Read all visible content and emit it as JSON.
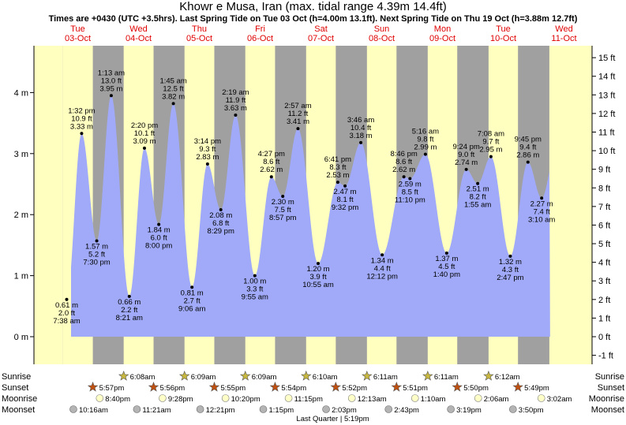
{
  "title": "Khowr e Musa, Iran (max. tidal range 4.39m 14.4ft)",
  "subtitle": "Times are +0430 (UTC +3.5hrs). Last Spring Tide on Tue 03 Oct (h=4.00m 13.1ft). Next Spring Tide on Thu 19 Oct (h=3.88m 12.7ft)",
  "colors": {
    "water": "#a0aaf8",
    "day": "#ffffc0",
    "night": "#a0a0a0",
    "date_text": "#e00000",
    "sunrise_star": "#c8b840",
    "sunset_star": "#c05010",
    "moonrise": "#ffffc8",
    "moonset": "#b4b4b4"
  },
  "chart_data": {
    "type": "area",
    "title": "Khowr e Musa, Iran (max. tidal range 4.39m 14.4ft)",
    "ylabel_left": "m",
    "ylabel_right": "ft",
    "ylim_m": [
      -0.33,
      4.78
    ],
    "y_ticks_m": [
      "0 m",
      "1 m",
      "2 m",
      "3 m",
      "4 m"
    ],
    "y_ticks_ft": [
      "-1 ft",
      "0 ft",
      "1 ft",
      "2 ft",
      "3 ft",
      "4 ft",
      "5 ft",
      "6 ft",
      "7 ft",
      "8 ft",
      "9 ft",
      "10 ft",
      "11 ft",
      "12 ft",
      "13 ft",
      "14 ft",
      "15 ft"
    ],
    "days": [
      {
        "name": "Tue",
        "date": "03-Oct"
      },
      {
        "name": "Wed",
        "date": "04-Oct"
      },
      {
        "name": "Thu",
        "date": "05-Oct"
      },
      {
        "name": "Fri",
        "date": "06-Oct"
      },
      {
        "name": "Sat",
        "date": "07-Oct"
      },
      {
        "name": "Sun",
        "date": "08-Oct"
      },
      {
        "name": "Mon",
        "date": "09-Oct"
      },
      {
        "name": "Tue",
        "date": "10-Oct"
      },
      {
        "name": "Wed",
        "date": "11-Oct"
      }
    ],
    "tides": [
      {
        "day": 0,
        "hour": 7.633,
        "m": 0.61,
        "type": "low",
        "labels": [
          "0.61 m",
          "2.0 ft",
          "7:38 am"
        ]
      },
      {
        "day": 0,
        "hour": 13.533,
        "m": 3.33,
        "type": "high",
        "labels": [
          "1:32 pm",
          "10.9 ft",
          "3.33 m"
        ]
      },
      {
        "day": 0,
        "hour": 19.5,
        "m": 1.57,
        "type": "low",
        "labels": [
          "1.57 m",
          "5.2 ft",
          "7:30 pm"
        ]
      },
      {
        "day": 1,
        "hour": 1.217,
        "m": 3.95,
        "type": "high",
        "labels": [
          "1:13 am",
          "13.0 ft",
          "3.95 m"
        ]
      },
      {
        "day": 1,
        "hour": 8.35,
        "m": 0.66,
        "type": "low",
        "labels": [
          "0.66 m",
          "2.2 ft",
          "8:21 am"
        ]
      },
      {
        "day": 1,
        "hour": 14.333,
        "m": 3.09,
        "type": "high",
        "labels": [
          "2:20 pm",
          "10.1 ft",
          "3.09 m"
        ]
      },
      {
        "day": 1,
        "hour": 20.0,
        "m": 1.84,
        "type": "low",
        "labels": [
          "1.84 m",
          "6.0 ft",
          "8:00 pm"
        ]
      },
      {
        "day": 2,
        "hour": 1.75,
        "m": 3.82,
        "type": "high",
        "labels": [
          "1:45 am",
          "12.5 ft",
          "3.82 m"
        ]
      },
      {
        "day": 2,
        "hour": 9.1,
        "m": 0.81,
        "type": "low",
        "labels": [
          "0.81 m",
          "2.7 ft",
          "9:06 am"
        ]
      },
      {
        "day": 2,
        "hour": 15.233,
        "m": 2.83,
        "type": "high",
        "labels": [
          "3:14 pm",
          "9.3 ft",
          "2.83 m"
        ]
      },
      {
        "day": 2,
        "hour": 20.483,
        "m": 2.08,
        "type": "low",
        "labels": [
          "2.08 m",
          "6.8 ft",
          "8:29 pm"
        ]
      },
      {
        "day": 3,
        "hour": 2.317,
        "m": 3.63,
        "type": "high",
        "labels": [
          "2:19 am",
          "11.9 ft",
          "3.63 m"
        ]
      },
      {
        "day": 3,
        "hour": 9.917,
        "m": 1.0,
        "type": "low",
        "labels": [
          "1.00 m",
          "3.3 ft",
          "9:55 am"
        ]
      },
      {
        "day": 3,
        "hour": 16.45,
        "m": 2.62,
        "type": "high",
        "labels": [
          "4:27 pm",
          "8.6 ft",
          "2.62 m"
        ]
      },
      {
        "day": 3,
        "hour": 20.95,
        "m": 2.3,
        "type": "low",
        "labels": [
          "2.30 m",
          "7.5 ft",
          "8:57 pm"
        ]
      },
      {
        "day": 4,
        "hour": 2.95,
        "m": 3.41,
        "type": "high",
        "labels": [
          "2:57 am",
          "11.2 ft",
          "3.41 m"
        ]
      },
      {
        "day": 4,
        "hour": 10.917,
        "m": 1.2,
        "type": "low",
        "labels": [
          "1.20 m",
          "3.9 ft",
          "10:55 am"
        ]
      },
      {
        "day": 4,
        "hour": 18.683,
        "m": 2.53,
        "type": "high",
        "labels": [
          "6:41 pm",
          "8.3 ft",
          "2.53 m"
        ]
      },
      {
        "day": 4,
        "hour": 21.533,
        "m": 2.47,
        "type": "low",
        "labels": [
          "2.47 m",
          "8.1 ft",
          "9:32 pm"
        ]
      },
      {
        "day": 5,
        "hour": 3.767,
        "m": 3.18,
        "type": "high",
        "labels": [
          "3:46 am",
          "10.4 ft",
          "3.18 m"
        ]
      },
      {
        "day": 5,
        "hour": 12.2,
        "m": 1.34,
        "type": "low",
        "labels": [
          "1.34 m",
          "4.4 ft",
          "12:12 pm"
        ]
      },
      {
        "day": 5,
        "hour": 20.767,
        "m": 2.62,
        "type": "high",
        "labels": [
          "8:46 pm",
          "8.6 ft",
          "2.62 m"
        ]
      },
      {
        "day": 5,
        "hour": 23.167,
        "m": 2.59,
        "type": "low",
        "labels": [
          "2.59 m",
          "8.5 ft",
          "11:10 pm"
        ]
      },
      {
        "day": 6,
        "hour": 5.267,
        "m": 2.99,
        "type": "high",
        "labels": [
          "5:16 am",
          "9.8 ft",
          "2.99 m"
        ]
      },
      {
        "day": 6,
        "hour": 13.667,
        "m": 1.37,
        "type": "low",
        "labels": [
          "1.37 m",
          "4.5 ft",
          "1:40 pm"
        ]
      },
      {
        "day": 6,
        "hour": 21.4,
        "m": 2.74,
        "type": "high",
        "labels": [
          "9:24 pm",
          "9.0 ft",
          "2.74 m"
        ]
      },
      {
        "day": 7,
        "hour": 1.917,
        "m": 2.51,
        "type": "low",
        "labels": [
          "2.51 m",
          "8.2 ft",
          "1:55 am"
        ]
      },
      {
        "day": 7,
        "hour": 7.133,
        "m": 2.95,
        "type": "high",
        "labels": [
          "7:08 am",
          "9.7 ft",
          "2.95 m"
        ]
      },
      {
        "day": 7,
        "hour": 14.783,
        "m": 1.32,
        "type": "low",
        "labels": [
          "1.32 m",
          "4.3 ft",
          "2:47 pm"
        ]
      },
      {
        "day": 7,
        "hour": 21.75,
        "m": 2.86,
        "type": "high",
        "labels": [
          "9:45 pm",
          "9.4 ft",
          "2.86 m"
        ]
      },
      {
        "day": 8,
        "hour": 3.167,
        "m": 2.27,
        "type": "low",
        "labels": [
          "2.27 m",
          "7.4 ft",
          "3:10 am"
        ]
      }
    ],
    "daylight": [
      {
        "day": 0,
        "sunrise": 6.133,
        "sunset": 17.95
      },
      {
        "day": 1,
        "sunrise": 6.133,
        "sunset": 17.933
      },
      {
        "day": 2,
        "sunrise": 6.15,
        "sunset": 17.917
      },
      {
        "day": 3,
        "sunrise": 6.15,
        "sunset": 17.9
      },
      {
        "day": 4,
        "sunrise": 6.167,
        "sunset": 17.867
      },
      {
        "day": 5,
        "sunrise": 6.183,
        "sunset": 17.85
      },
      {
        "day": 6,
        "sunrise": 6.183,
        "sunset": 17.833
      },
      {
        "day": 7,
        "sunrise": 6.2,
        "sunset": 17.817
      }
    ],
    "data_start_hour": 0.0,
    "data_end_day": 8,
    "data_end_hour": 6.5,
    "sunrise_events": [
      {
        "day": 1,
        "hour": 6.133,
        "label": "6:08am"
      },
      {
        "day": 2,
        "hour": 6.15,
        "label": "6:09am"
      },
      {
        "day": 3,
        "hour": 6.15,
        "label": "6:09am"
      },
      {
        "day": 4,
        "hour": 6.167,
        "label": "6:10am"
      },
      {
        "day": 5,
        "hour": 6.183,
        "label": "6:11am"
      },
      {
        "day": 6,
        "hour": 6.183,
        "label": "6:11am"
      },
      {
        "day": 7,
        "hour": 6.2,
        "label": "6:12am"
      }
    ],
    "sunset_events": [
      {
        "day": 0,
        "hour": 17.95,
        "label": "5:57pm"
      },
      {
        "day": 1,
        "hour": 17.933,
        "label": "5:56pm"
      },
      {
        "day": 2,
        "hour": 17.917,
        "label": "5:55pm"
      },
      {
        "day": 3,
        "hour": 17.9,
        "label": "5:54pm"
      },
      {
        "day": 4,
        "hour": 17.867,
        "label": "5:52pm"
      },
      {
        "day": 5,
        "hour": 17.85,
        "label": "5:51pm"
      },
      {
        "day": 6,
        "hour": 17.833,
        "label": "5:50pm"
      },
      {
        "day": 7,
        "hour": 17.817,
        "label": "5:49pm"
      }
    ],
    "moonrise_events": [
      {
        "day": 0,
        "hour": 20.667,
        "label": "8:40pm"
      },
      {
        "day": 1,
        "hour": 21.467,
        "label": "9:28pm"
      },
      {
        "day": 2,
        "hour": 22.333,
        "label": "10:20pm"
      },
      {
        "day": 3,
        "hour": 23.25,
        "label": "11:15pm"
      },
      {
        "day": 5,
        "hour": 0.217,
        "label": "12:13am"
      },
      {
        "day": 6,
        "hour": 1.167,
        "label": "1:10am"
      },
      {
        "day": 7,
        "hour": 2.1,
        "label": "2:06am"
      },
      {
        "day": 8,
        "hour": 3.033,
        "label": "3:02am"
      }
    ],
    "moonset_events": [
      {
        "day": 0,
        "hour": 10.267,
        "label": "10:16am"
      },
      {
        "day": 1,
        "hour": 11.35,
        "label": "11:21am"
      },
      {
        "day": 2,
        "hour": 12.35,
        "label": "12:21pm"
      },
      {
        "day": 3,
        "hour": 13.25,
        "label": "1:15pm"
      },
      {
        "day": 4,
        "hour": 14.05,
        "label": "2:03pm"
      },
      {
        "day": 5,
        "hour": 14.717,
        "label": "2:43pm"
      },
      {
        "day": 6,
        "hour": 15.317,
        "label": "3:19pm"
      },
      {
        "day": 7,
        "hour": 15.833,
        "label": "3:50pm"
      }
    ],
    "moon_phase": {
      "day": 4,
      "hour": 17.317,
      "label": "Last Quarter | 5:19pm"
    },
    "row_labels": [
      "Sunrise",
      "Sunset",
      "Moonrise",
      "Moonset"
    ]
  }
}
